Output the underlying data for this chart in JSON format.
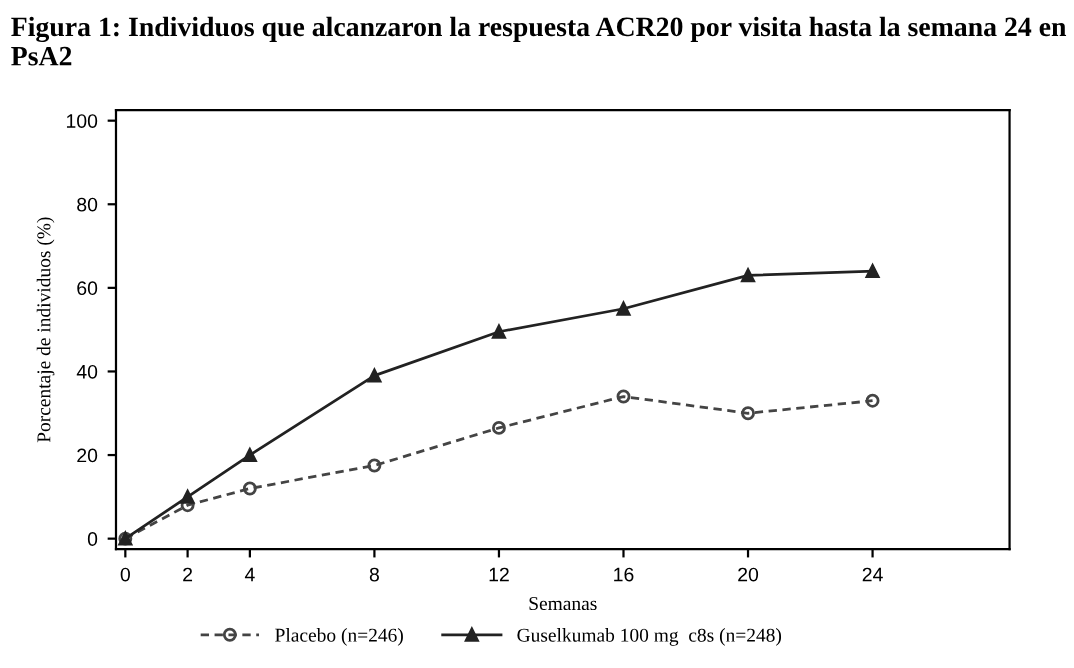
{
  "chart_data": {
    "type": "line",
    "title": "Figura 1: Individuos que alcanzaron la respuesta ACR20 por visita hasta la semana 24 en PsA2",
    "xlabel": "Semanas",
    "ylabel": "Porcentaje de individuos (%)",
    "x": [
      0,
      2,
      4,
      8,
      12,
      16,
      20,
      24
    ],
    "series": [
      {
        "name": "Placebo (n=246)",
        "color": "#444444",
        "values": [
          0,
          8,
          12,
          17.5,
          26.5,
          34,
          30,
          33
        ],
        "marker": "circle",
        "line_style": "dashed"
      },
      {
        "name": "Guselkumab 100 mg  c8s (n=248)",
        "color": "#222222",
        "values": [
          0,
          10,
          20,
          39,
          49.5,
          55,
          63,
          64
        ],
        "marker": "triangle",
        "line_style": "solid"
      }
    ],
    "xlim": [
      -0.3,
      28.4
    ],
    "xticks": [
      0,
      2,
      4,
      8,
      12,
      16,
      20,
      24
    ],
    "ylim": [
      -2.5,
      102.5
    ],
    "yticks": [
      0,
      20,
      40,
      60,
      80,
      100
    ],
    "grid": false,
    "legend": "bottom"
  }
}
